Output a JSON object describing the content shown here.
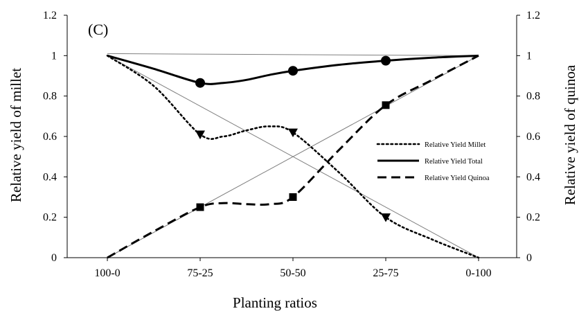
{
  "chart_data": {
    "type": "line",
    "panel_label": "(C)",
    "xlabel": "Planting ratios",
    "ylabel_left": "Relative yield of millet",
    "ylabel_right": "Relative yield of quinoa",
    "categories": [
      "100-0",
      "75-25",
      "50-50",
      "25-75",
      "0-100"
    ],
    "ylim": [
      0,
      1.2
    ],
    "yticks": [
      "0",
      "0.2",
      "0.4",
      "0.6",
      "0.8",
      "1",
      "1.2"
    ],
    "y2ticks": [
      "0",
      "0.2",
      "0.4",
      "0.6",
      "0.8",
      "1",
      "1.2"
    ],
    "grid": false,
    "legend_position": "right",
    "series": [
      {
        "name": "Relative Yield Millet",
        "style": "dotted",
        "marker": "triangle-down",
        "values": [
          1.0,
          0.61,
          0.62,
          0.2,
          0.0
        ],
        "curve": [
          [
            0,
            1.0
          ],
          [
            0.5,
            0.85
          ],
          [
            1,
            0.61
          ],
          [
            1.25,
            0.6
          ],
          [
            1.5,
            0.63
          ],
          [
            1.75,
            0.65
          ],
          [
            2,
            0.62
          ],
          [
            2.5,
            0.42
          ],
          [
            3,
            0.2
          ],
          [
            3.5,
            0.09
          ],
          [
            4,
            0.0
          ]
        ]
      },
      {
        "name": "Relative Yield Total",
        "style": "solid",
        "marker": "circle",
        "values": [
          1.0,
          0.865,
          0.925,
          0.975,
          1.0
        ],
        "curve": [
          [
            0,
            1.0
          ],
          [
            0.5,
            0.935
          ],
          [
            1,
            0.865
          ],
          [
            1.25,
            0.865
          ],
          [
            1.5,
            0.88
          ],
          [
            1.75,
            0.905
          ],
          [
            2,
            0.925
          ],
          [
            2.5,
            0.955
          ],
          [
            3,
            0.975
          ],
          [
            3.5,
            0.99
          ],
          [
            4,
            1.0
          ]
        ]
      },
      {
        "name": "Relative Yield Quinoa",
        "style": "dashed",
        "marker": "square",
        "values": [
          0.0,
          0.25,
          0.3,
          0.755,
          1.0
        ],
        "curve": [
          [
            0,
            0.0
          ],
          [
            0.5,
            0.13
          ],
          [
            1,
            0.25
          ],
          [
            1.25,
            0.27
          ],
          [
            1.5,
            0.265
          ],
          [
            1.75,
            0.265
          ],
          [
            2,
            0.3
          ],
          [
            2.5,
            0.535
          ],
          [
            3,
            0.755
          ],
          [
            3.5,
            0.88
          ],
          [
            4,
            1.0
          ]
        ]
      }
    ],
    "reference_lines": [
      {
        "from": [
          0,
          1.0
        ],
        "to": [
          4,
          0.0
        ]
      },
      {
        "from": [
          0,
          0.0
        ],
        "to": [
          4,
          1.0
        ]
      },
      {
        "from": [
          0,
          1.01
        ],
        "to": [
          4,
          1.0
        ]
      }
    ],
    "colors": {
      "line": "#000000",
      "reference": "#7f7f7f"
    }
  }
}
